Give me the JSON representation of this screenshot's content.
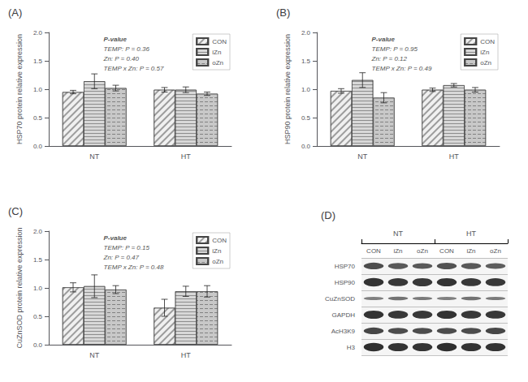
{
  "chart_data": [
    {
      "type": "bar",
      "title": "(A)",
      "ylabel": "HSP70 protein relative expression",
      "annotations": [
        "P-value",
        "TEMP: P = 0.36",
        "Zn: P = 0.40",
        "TEMP x Zn: P = 0.57"
      ],
      "categories": [
        "NT",
        "HT"
      ],
      "series": [
        {
          "name": "CON",
          "color": "#f0f0f0",
          "values": [
            0.95,
            0.99
          ],
          "errors": [
            0.03,
            0.04
          ]
        },
        {
          "name": "iZn",
          "color": "#d8d8d8",
          "values": [
            1.14,
            0.99
          ],
          "errors": [
            0.13,
            0.05
          ]
        },
        {
          "name": "oZn",
          "color": "#c8c8c8",
          "values": [
            1.02,
            0.92
          ],
          "errors": [
            0.05,
            0.03
          ]
        }
      ],
      "ylim": [
        0,
        2.0
      ],
      "yticks": [
        {
          "value": 0,
          "label": "0.0"
        },
        0.5,
        {
          "value": 1.0,
          "label": "1.0"
        },
        1.5,
        {
          "value": 2.0,
          "label": "2.0"
        }
      ],
      "legend": "upper right",
      "grid": false
    },
    {
      "type": "bar",
      "title": "(B)",
      "ylabel": "HSP90 protein relative expression",
      "annotations": [
        "P-value",
        "TEMP: P = 0.95",
        "Zn: P = 0.12",
        "TEMP x Zn: P = 0.49"
      ],
      "categories": [
        "NT",
        "HT"
      ],
      "series": [
        {
          "name": "CON",
          "color": "#f0f0f0",
          "values": [
            0.97,
            0.99
          ],
          "errors": [
            0.04,
            0.03
          ]
        },
        {
          "name": "iZn",
          "color": "#d8d8d8",
          "values": [
            1.16,
            1.07
          ],
          "errors": [
            0.13,
            0.03
          ]
        },
        {
          "name": "oZn",
          "color": "#c8c8c8",
          "values": [
            0.85,
            0.99
          ],
          "errors": [
            0.09,
            0.04
          ]
        }
      ],
      "ylim": [
        0,
        2.0
      ],
      "yticks": [
        {
          "value": 0,
          "label": "0.0"
        },
        0.5,
        {
          "value": 1.0,
          "label": "1.0"
        },
        1.5,
        {
          "value": 2.0,
          "label": "2.0"
        }
      ],
      "legend": "upper right",
      "grid": false
    },
    {
      "type": "bar",
      "title": "(C)",
      "ylabel": "CuZnSOD protein relative expression",
      "annotations": [
        "P-value",
        "TEMP: P = 0.15",
        "Zn: P = 0.47",
        "TEMP x Zn: P = 0.48"
      ],
      "categories": [
        "NT",
        "HT"
      ],
      "series": [
        {
          "name": "CON",
          "color": "#f0f0f0",
          "values": [
            1.01,
            0.65
          ],
          "errors": [
            0.08,
            0.15
          ]
        },
        {
          "name": "iZn",
          "color": "#d8d8d8",
          "values": [
            1.03,
            0.94
          ],
          "errors": [
            0.2,
            0.09
          ]
        },
        {
          "name": "oZn",
          "color": "#c8c8c8",
          "values": [
            0.97,
            0.94
          ],
          "errors": [
            0.07,
            0.1
          ]
        }
      ],
      "ylim": [
        0,
        2.0
      ],
      "yticks": [
        {
          "value": 0,
          "label": "0.0"
        },
        0.5,
        {
          "value": 1.0,
          "label": "1.0"
        },
        1.5,
        {
          "value": 2.0,
          "label": "2.0"
        }
      ],
      "legend": "upper right",
      "grid": false
    },
    {
      "type": "blot",
      "title": "(D)",
      "col_groups": [
        "NT",
        "HT"
      ],
      "categories": [
        "CON",
        "iZn",
        "oZn",
        "CON",
        "iZn",
        "oZn"
      ],
      "rows": [
        "HSP70",
        "HSP90",
        "CuZnSOD",
        "GAPDH",
        "AcH3K9",
        "H3"
      ],
      "band_heights": {
        "HSP70": [
          0.55,
          0.5,
          0.48,
          0.52,
          0.5,
          0.48
        ],
        "HSP90": [
          0.7,
          0.65,
          0.68,
          0.68,
          0.65,
          0.65
        ],
        "CuZnSOD": [
          0.28,
          0.3,
          0.28,
          0.28,
          0.3,
          0.28
        ],
        "GAPDH": [
          0.68,
          0.65,
          0.65,
          0.68,
          0.65,
          0.65
        ],
        "AcH3K9": [
          0.55,
          0.5,
          0.5,
          0.5,
          0.5,
          0.52
        ],
        "H3": [
          0.7,
          0.68,
          0.68,
          0.7,
          0.68,
          0.68
        ]
      },
      "band_gray": {
        "HSP70": [
          0.3,
          0.35,
          0.35,
          0.32,
          0.35,
          0.37
        ],
        "HSP90": [
          0.2,
          0.22,
          0.22,
          0.2,
          0.22,
          0.22
        ],
        "CuZnSOD": [
          0.5,
          0.45,
          0.48,
          0.5,
          0.45,
          0.48
        ],
        "GAPDH": [
          0.2,
          0.22,
          0.22,
          0.2,
          0.22,
          0.22
        ],
        "AcH3K9": [
          0.28,
          0.3,
          0.3,
          0.3,
          0.3,
          0.28
        ],
        "H3": [
          0.18,
          0.2,
          0.2,
          0.18,
          0.2,
          0.2
        ]
      }
    }
  ]
}
